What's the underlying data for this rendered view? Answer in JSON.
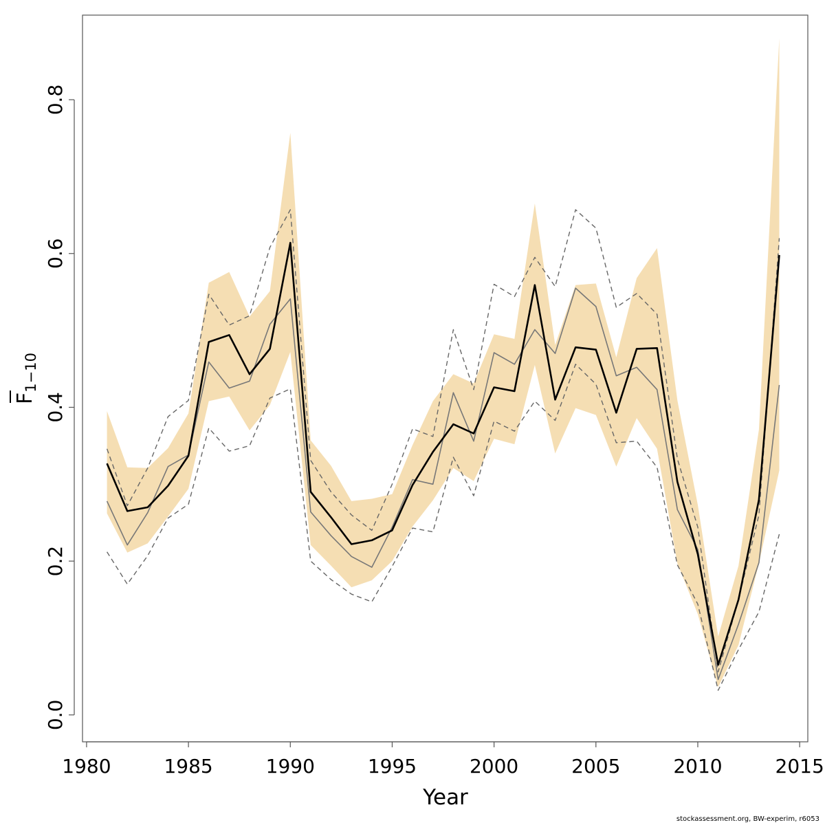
{
  "chart_data": {
    "type": "line",
    "xlabel": "Year",
    "ylabel": {
      "base": "F",
      "sub": "1−10"
    },
    "xlim": [
      1979.8,
      2015.4
    ],
    "ylim": [
      -0.035,
      0.91
    ],
    "xticks": [
      "1980",
      "1985",
      "1990",
      "1995",
      "2000",
      "2005",
      "2010",
      "2015"
    ],
    "yticks": [
      "0.0",
      "0.2",
      "0.4",
      "0.6",
      "0.8"
    ],
    "grid": false,
    "x": [
      1981,
      1982,
      1983,
      1984,
      1985,
      1986,
      1987,
      1988,
      1989,
      1990,
      1991,
      1992,
      1993,
      1994,
      1995,
      1996,
      1997,
      1998,
      1999,
      2000,
      2001,
      2002,
      2003,
      2004,
      2005,
      2006,
      2007,
      2008,
      2009,
      2010,
      2011,
      2012,
      2013,
      2014
    ],
    "band": {
      "color": "#f5deb3",
      "upper": [
        0.395,
        0.322,
        0.321,
        0.347,
        0.392,
        0.562,
        0.576,
        0.518,
        0.551,
        0.757,
        0.357,
        0.324,
        0.278,
        0.281,
        0.287,
        0.351,
        0.408,
        0.443,
        0.431,
        0.495,
        0.489,
        0.665,
        0.481,
        0.559,
        0.561,
        0.465,
        0.568,
        0.607,
        0.409,
        0.273,
        0.102,
        0.194,
        0.371,
        0.88
      ],
      "lower": [
        0.262,
        0.211,
        0.223,
        0.258,
        0.294,
        0.408,
        0.414,
        0.37,
        0.403,
        0.472,
        0.221,
        0.194,
        0.166,
        0.175,
        0.2,
        0.245,
        0.279,
        0.321,
        0.304,
        0.359,
        0.352,
        0.455,
        0.34,
        0.399,
        0.39,
        0.323,
        0.386,
        0.346,
        0.197,
        0.131,
        0.036,
        0.091,
        0.197,
        0.318
      ]
    },
    "series": [
      {
        "role": "estimate",
        "color": "#000000",
        "width": 2.6,
        "dash": "",
        "values": [
          0.327,
          0.265,
          0.27,
          0.298,
          0.337,
          0.485,
          0.494,
          0.443,
          0.476,
          0.614,
          0.29,
          0.257,
          0.222,
          0.227,
          0.24,
          0.299,
          0.342,
          0.378,
          0.366,
          0.426,
          0.421,
          0.559,
          0.41,
          0.478,
          0.475,
          0.393,
          0.476,
          0.477,
          0.303,
          0.209,
          0.065,
          0.15,
          0.28,
          0.598
        ]
      },
      {
        "role": "comparison",
        "color": "#777777",
        "width": 1.6,
        "dash": "",
        "values": [
          0.278,
          0.221,
          0.263,
          0.323,
          0.338,
          0.459,
          0.425,
          0.434,
          0.508,
          0.541,
          0.264,
          0.233,
          0.206,
          0.192,
          0.244,
          0.306,
          0.3,
          0.419,
          0.356,
          0.471,
          0.456,
          0.501,
          0.47,
          0.555,
          0.531,
          0.441,
          0.452,
          0.423,
          0.267,
          0.215,
          0.046,
          0.118,
          0.198,
          0.429
        ]
      },
      {
        "role": "upper-dashed",
        "color": "#666666",
        "width": 1.4,
        "dash": "7,5",
        "values": [
          0.346,
          0.272,
          0.321,
          0.388,
          0.409,
          0.547,
          0.507,
          0.519,
          0.608,
          0.657,
          0.331,
          0.29,
          0.26,
          0.24,
          0.3,
          0.372,
          0.362,
          0.501,
          0.423,
          0.56,
          0.544,
          0.595,
          0.557,
          0.657,
          0.633,
          0.53,
          0.548,
          0.521,
          0.333,
          0.244,
          0.056,
          0.15,
          0.26,
          0.62
        ]
      },
      {
        "role": "lower-dashed",
        "color": "#666666",
        "width": 1.4,
        "dash": "7,5",
        "values": [
          0.212,
          0.17,
          0.207,
          0.256,
          0.274,
          0.373,
          0.343,
          0.35,
          0.412,
          0.424,
          0.2,
          0.176,
          0.157,
          0.147,
          0.193,
          0.243,
          0.238,
          0.335,
          0.285,
          0.382,
          0.369,
          0.408,
          0.383,
          0.456,
          0.43,
          0.354,
          0.356,
          0.322,
          0.195,
          0.144,
          0.032,
          0.085,
          0.134,
          0.235
        ]
      }
    ]
  },
  "footer": {
    "credit": "stockassessment.org, BW-experim, r6053"
  }
}
